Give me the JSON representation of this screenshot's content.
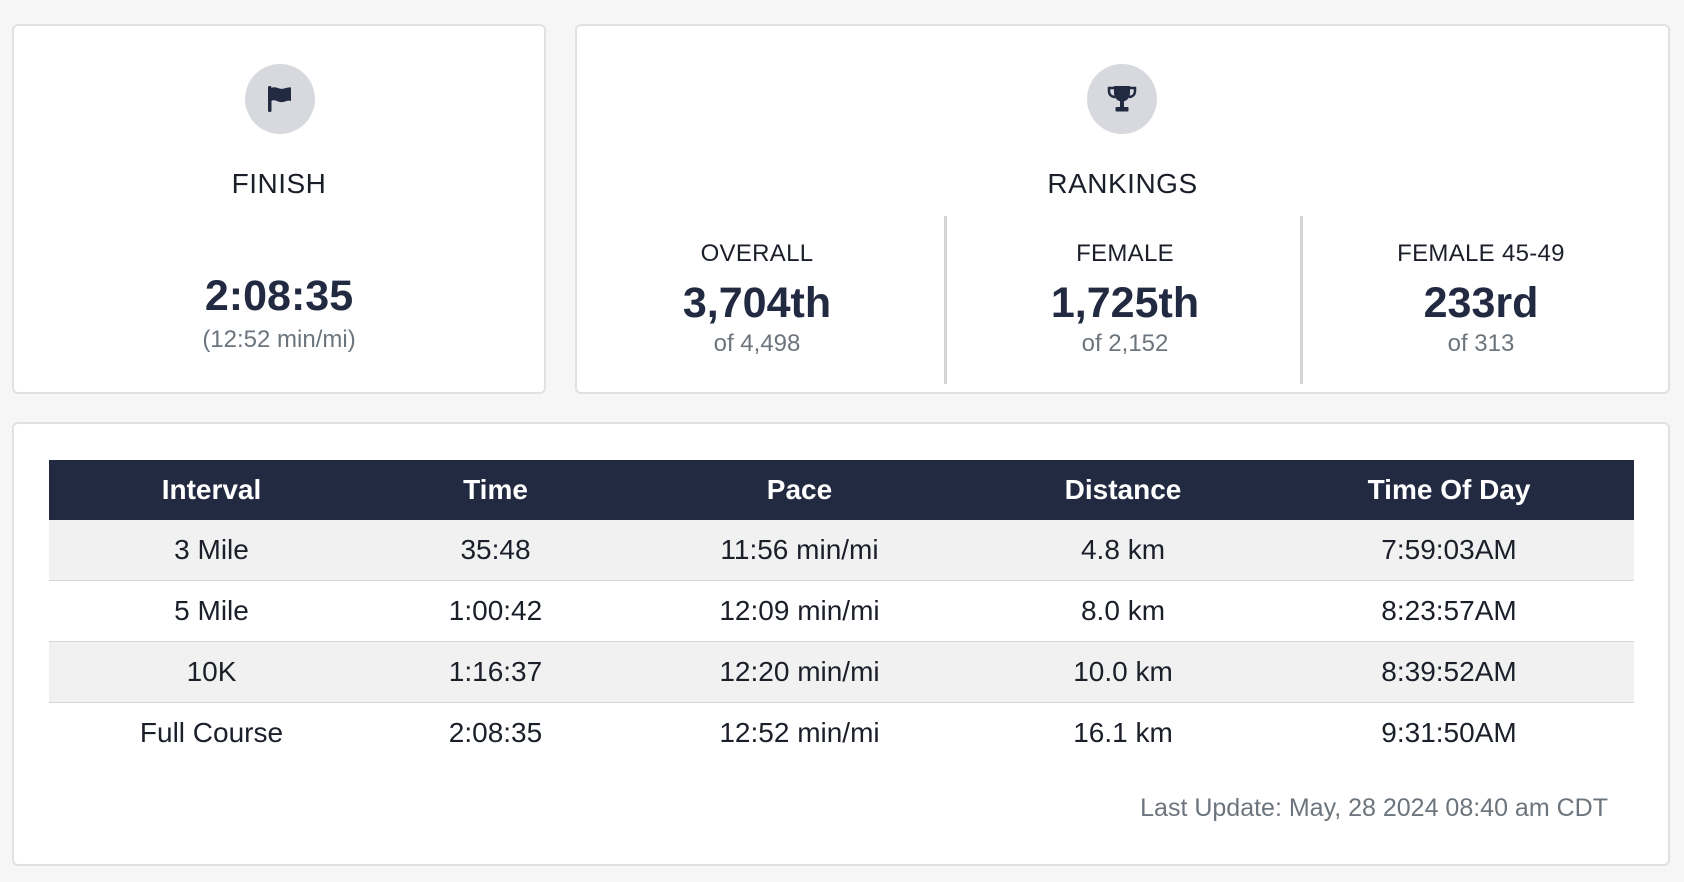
{
  "finish": {
    "icon": "flag-icon",
    "label": "FINISH",
    "time": "2:08:35",
    "pace": "(12:52 min/mi)"
  },
  "rankings": {
    "icon": "trophy-icon",
    "label": "RANKINGS",
    "items": [
      {
        "label": "OVERALL",
        "value": "3,704th",
        "total": "of 4,498"
      },
      {
        "label": "FEMALE",
        "value": "1,725th",
        "total": "of 2,152"
      },
      {
        "label": "FEMALE 45-49",
        "value": "233rd",
        "total": "of 313"
      }
    ]
  },
  "splits": {
    "headers": [
      "Interval",
      "Time",
      "Pace",
      "Distance",
      "Time Of Day"
    ],
    "rows": [
      [
        "3 Mile",
        "35:48",
        "11:56 min/mi",
        "4.8 km",
        "7:59:03AM"
      ],
      [
        "5 Mile",
        "1:00:42",
        "12:09 min/mi",
        "8.0 km",
        "8:23:57AM"
      ],
      [
        "10K",
        "1:16:37",
        "12:20 min/mi",
        "10.0 km",
        "8:39:52AM"
      ],
      [
        "Full Course",
        "2:08:35",
        "12:52 min/mi",
        "16.1 km",
        "9:31:50AM"
      ]
    ],
    "last_update": "Last Update: May, 28 2024 08:40 am CDT"
  },
  "colors": {
    "header_bg": "#222a42",
    "icon_bg": "#d8d9de",
    "muted_text": "#6c757d",
    "page_bg": "#f6f6f6"
  }
}
